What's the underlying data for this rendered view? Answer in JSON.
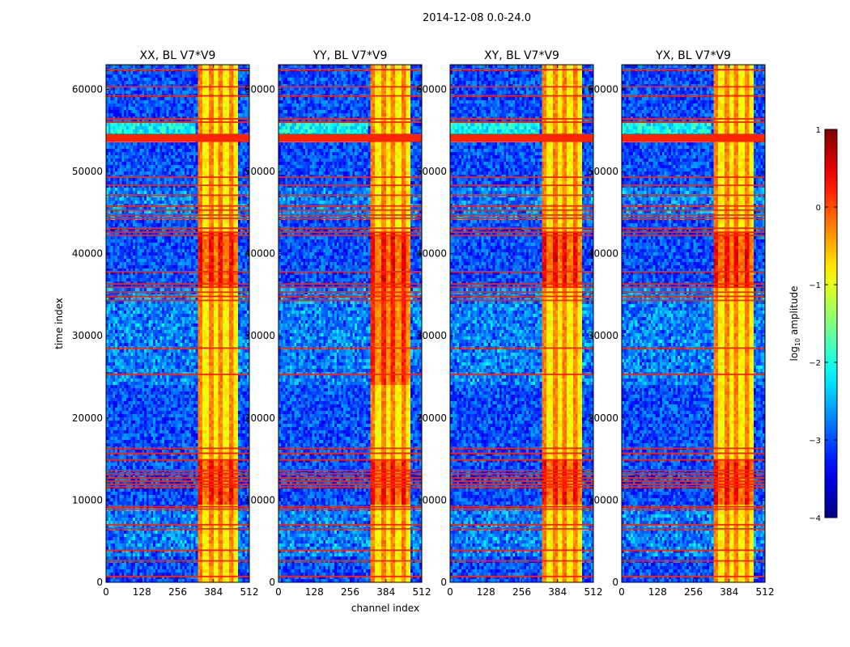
{
  "figure": {
    "suptitle": "2014-12-08 0.0-24.0"
  },
  "chart_data": {
    "type": "heatmap",
    "suptitle": "2014-12-08 0.0-24.0",
    "xlabel": "channel index",
    "ylabel": "time index",
    "xlim": [
      0,
      512
    ],
    "ylim": [
      0,
      63000
    ],
    "xticks": [
      0,
      128,
      256,
      384,
      512
    ],
    "yticks": [
      0,
      10000,
      20000,
      30000,
      40000,
      50000,
      60000
    ],
    "panels": [
      {
        "title": "XX, BL V7*V9",
        "pol": "XX"
      },
      {
        "title": "YY, BL V7*V9",
        "pol": "YY"
      },
      {
        "title": "XY, BL V7*V9",
        "pol": "XY"
      },
      {
        "title": "YX, BL V7*V9",
        "pol": "YX"
      }
    ],
    "colorbar": {
      "label": "log10 amplitude",
      "label_base": "log",
      "label_sub": "10",
      "label_rest": " amplitude",
      "colormap": "jet",
      "range": [
        -4,
        1
      ],
      "ticks": [
        1,
        0,
        -1,
        -2,
        -3,
        -4
      ],
      "tick_labels": [
        "1",
        "0",
        "−1",
        "−2",
        "−3",
        "−4"
      ]
    },
    "features": {
      "background_level": -3.0,
      "high_band_channels": [
        330,
        470
      ],
      "high_band_level": -0.6,
      "flagged_rows_level": 0.2,
      "flagged_row_times": [
        700,
        2600,
        3900,
        6500,
        7000,
        8900,
        9200,
        11600,
        11900,
        12300,
        12700,
        13200,
        13600,
        14900,
        15700,
        16300,
        25300,
        28500,
        34300,
        34800,
        35300,
        35900,
        36300,
        37800,
        42200,
        42600,
        43100,
        44300,
        44700,
        45300,
        45800,
        47100,
        48300,
        49300,
        56000,
        56400,
        59200,
        60300,
        62400
      ],
      "saturated_time_range": [
        53600,
        54600
      ],
      "bright_time_ranges": [
        [
          9500,
          15000
        ],
        [
          36000,
          42500
        ]
      ]
    }
  }
}
